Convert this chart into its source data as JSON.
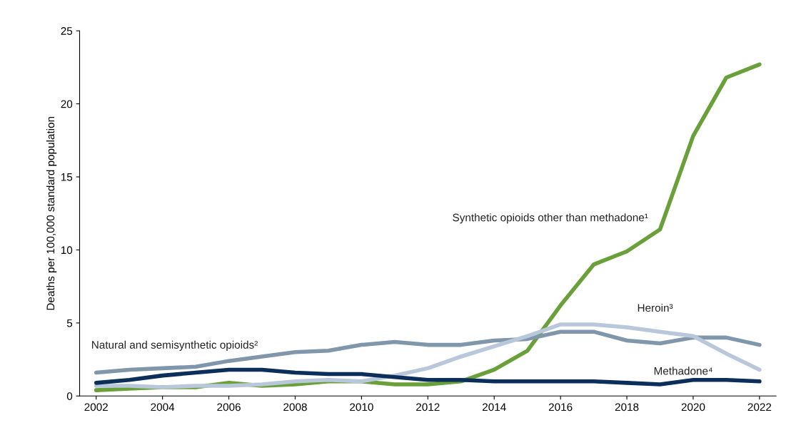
{
  "chart_data": {
    "type": "line",
    "ylabel": "Deaths per 100,000 standard population",
    "x": [
      2002,
      2003,
      2004,
      2005,
      2006,
      2007,
      2008,
      2009,
      2010,
      2011,
      2012,
      2013,
      2014,
      2015,
      2016,
      2017,
      2018,
      2019,
      2020,
      2021,
      2022
    ],
    "xlim": [
      2001.5,
      2022.5
    ],
    "xticks": [
      2002,
      2004,
      2006,
      2008,
      2010,
      2012,
      2014,
      2016,
      2018,
      2020,
      2022
    ],
    "ylim": [
      0,
      25
    ],
    "yticks": [
      0,
      5,
      10,
      15,
      20,
      25
    ],
    "grid": false,
    "legend": false,
    "marker": "none",
    "line_style": "solid",
    "series": [
      {
        "name": "Synthetic opioids other than methadone¹",
        "color": "#6aa03a",
        "values": [
          0.4,
          0.5,
          0.6,
          0.6,
          0.9,
          0.7,
          0.8,
          1.0,
          1.0,
          0.8,
          0.8,
          1.0,
          1.8,
          3.1,
          6.2,
          9.0,
          9.9,
          11.4,
          17.8,
          21.8,
          22.7
        ]
      },
      {
        "name": "Natural and semisynthetic opioids²",
        "color": "#7f96ab",
        "values": [
          1.6,
          1.8,
          1.9,
          2.0,
          2.4,
          2.7,
          3.0,
          3.1,
          3.5,
          3.7,
          3.5,
          3.5,
          3.8,
          3.9,
          4.4,
          4.4,
          3.8,
          3.6,
          4.0,
          4.0,
          3.5
        ]
      },
      {
        "name": "Heroin³",
        "color": "#b8c7d9",
        "values": [
          0.7,
          0.7,
          0.6,
          0.7,
          0.7,
          0.8,
          1.0,
          1.1,
          1.0,
          1.4,
          1.9,
          2.7,
          3.4,
          4.1,
          4.9,
          4.9,
          4.7,
          4.4,
          4.1,
          2.9,
          1.8
        ]
      },
      {
        "name": "Methadone⁴",
        "color": "#0b2f5a",
        "values": [
          0.9,
          1.1,
          1.4,
          1.6,
          1.8,
          1.8,
          1.6,
          1.5,
          1.5,
          1.3,
          1.1,
          1.1,
          1.0,
          1.0,
          1.0,
          1.0,
          0.9,
          0.8,
          1.1,
          1.1,
          1.0
        ]
      }
    ]
  }
}
